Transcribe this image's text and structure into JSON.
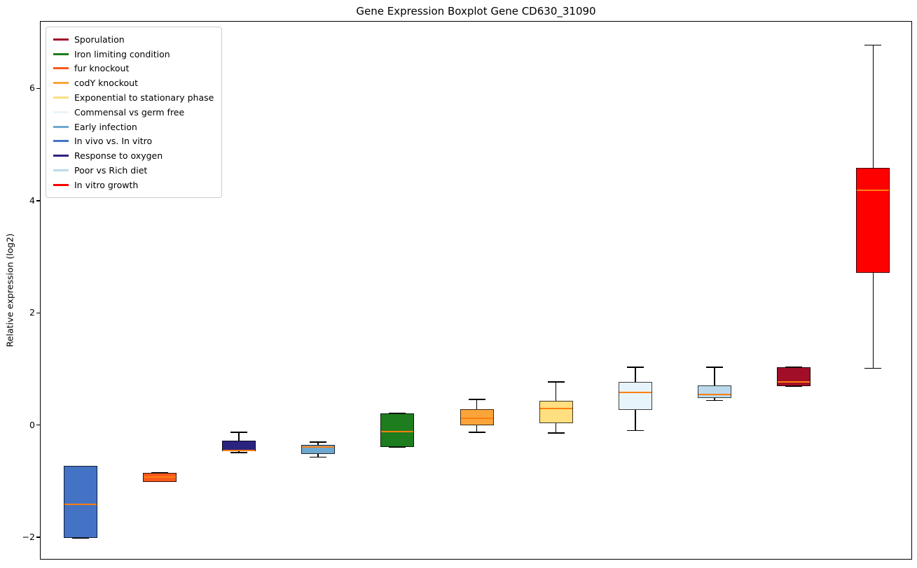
{
  "figure": {
    "title": "Gene Expression Boxplot Gene CD630_31090",
    "ylabel": "Relative expression (log2)"
  },
  "chart_data": {
    "type": "boxplot",
    "title": "Gene Expression Boxplot Gene CD630_31090",
    "xlabel": "",
    "ylabel": "Relative expression (log2)",
    "ylim": [
      -2.4,
      7.2
    ],
    "yticks": [
      -2,
      0,
      2,
      4,
      6
    ],
    "grid": false,
    "legend_position": "upper-left",
    "median_color": "#ff7f0e",
    "whisker_color": "#000000",
    "legend": [
      {
        "label": "Sporulation",
        "color": "#a10e28"
      },
      {
        "label": "Iron limiting condition",
        "color": "#1e7d1e"
      },
      {
        "label": "fur knockout",
        "color": "#f8591d"
      },
      {
        "label": "codY knockout",
        "color": "#faa43a"
      },
      {
        "label": "Exponential to stationary phase",
        "color": "#ffdf80"
      },
      {
        "label": "Commensal vs germ free",
        "color": "#e8f4fb"
      },
      {
        "label": "Early infection",
        "color": "#6fa8cf"
      },
      {
        "label": "In vivo vs. In vitro",
        "color": "#4472c4"
      },
      {
        "label": "Response to oxygen",
        "color": "#2b2380"
      },
      {
        "label": "Poor vs Rich diet",
        "color": "#bcd9ec"
      },
      {
        "label": "In vitro growth",
        "color": "#ff0000"
      }
    ],
    "boxes": [
      {
        "condition": "In vivo vs. In vitro",
        "color": "#4472c4",
        "whislo": -2.0,
        "q1": -2.0,
        "median": -1.4,
        "q3": -0.72,
        "whishi": -0.72
      },
      {
        "condition": "fur knockout",
        "color": "#f8591d",
        "whislo": -1.0,
        "q1": -1.0,
        "median": -0.92,
        "q3": -0.84,
        "whishi": -0.84
      },
      {
        "condition": "Response to oxygen",
        "color": "#2b2380",
        "whislo": -0.48,
        "q1": -0.46,
        "median": -0.44,
        "q3": -0.27,
        "whishi": -0.12
      },
      {
        "condition": "Early infection",
        "color": "#6fa8cf",
        "whislo": -0.56,
        "q1": -0.51,
        "median": -0.38,
        "q3": -0.34,
        "whishi": -0.29
      },
      {
        "condition": "Iron limiting condition",
        "color": "#1e7d1e",
        "whislo": -0.38,
        "q1": -0.38,
        "median": -0.1,
        "q3": 0.22,
        "whishi": 0.22
      },
      {
        "condition": "codY knockout",
        "color": "#faa43a",
        "whislo": -0.12,
        "q1": 0.0,
        "median": 0.13,
        "q3": 0.29,
        "whishi": 0.47
      },
      {
        "condition": "Exponential to stationary phase",
        "color": "#ffdf80",
        "whislo": -0.13,
        "q1": 0.04,
        "median": 0.31,
        "q3": 0.44,
        "whishi": 0.78
      },
      {
        "condition": "Commensal vs germ free",
        "color": "#e8f4fb",
        "whislo": -0.09,
        "q1": 0.28,
        "median": 0.59,
        "q3": 0.78,
        "whishi": 1.04
      },
      {
        "condition": "Poor vs Rich diet",
        "color": "#bcd9ec",
        "whislo": 0.45,
        "q1": 0.49,
        "median": 0.56,
        "q3": 0.72,
        "whishi": 1.04
      },
      {
        "condition": "Sporulation",
        "color": "#a10e28",
        "whislo": 0.7,
        "q1": 0.7,
        "median": 0.78,
        "q3": 1.04,
        "whishi": 1.04
      },
      {
        "condition": "In vitro growth",
        "color": "#ff0000",
        "whislo": 1.02,
        "q1": 2.72,
        "median": 4.2,
        "q3": 4.6,
        "whishi": 6.78
      }
    ]
  }
}
